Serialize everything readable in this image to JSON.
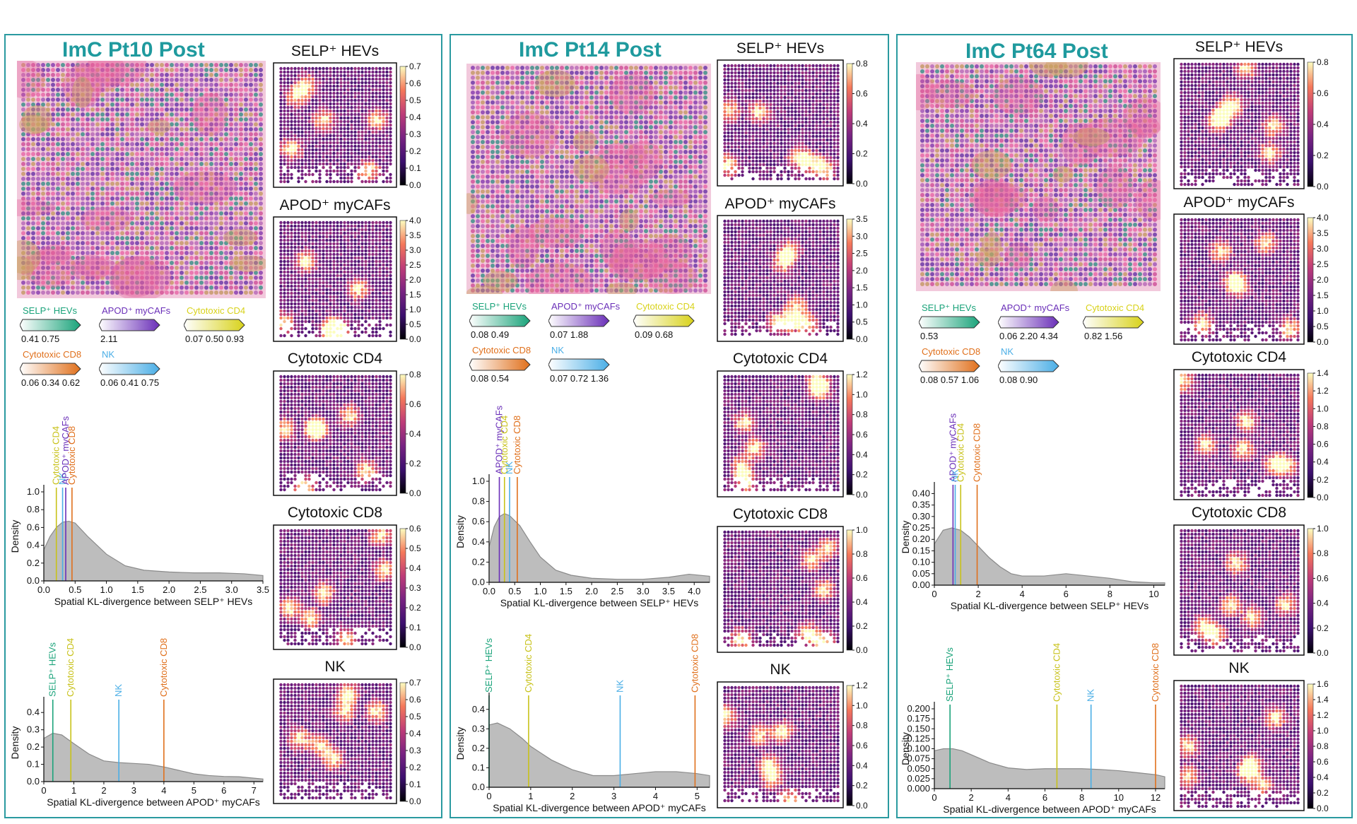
{
  "panels": [
    {
      "title": "ImC Pt10 Post",
      "legend": [
        {
          "name": "SELP⁺ HEVs",
          "color": "#1aa37a",
          "ticks": "0.41 0.75"
        },
        {
          "name": "APOD⁺ myCAFs",
          "color": "#6a2fb8",
          "ticks": "2.11"
        },
        {
          "name": "Cytotoxic CD4",
          "color": "#d8d21a",
          "ticks": "0.07 0.50 0.93"
        },
        {
          "name": "Cytotoxic CD8",
          "color": "#e0701c",
          "ticks": "0.06 0.34 0.62"
        },
        {
          "name": "NK",
          "color": "#4aaee6",
          "ticks": "0.06 0.41 0.75"
        }
      ],
      "maps": [
        {
          "title": "SELP⁺ HEVs",
          "ticks": [
            "0.0",
            "0.1",
            "0.2",
            "0.3",
            "0.4",
            "0.5",
            "0.6",
            "0.7"
          ]
        },
        {
          "title": "APOD⁺ myCAFs",
          "ticks": [
            "0.0",
            "0.5",
            "1.0",
            "1.5",
            "2.0",
            "2.5",
            "3.0",
            "3.5",
            "4.0"
          ]
        },
        {
          "title": "Cytotoxic CD4",
          "ticks": [
            "0.0",
            "0.2",
            "0.4",
            "0.6",
            "0.8"
          ]
        },
        {
          "title": "Cytotoxic CD8",
          "ticks": [
            "0.0",
            "0.1",
            "0.2",
            "0.3",
            "0.4",
            "0.5",
            "0.6"
          ]
        },
        {
          "title": "NK",
          "ticks": [
            "0.0",
            "0.1",
            "0.2",
            "0.3",
            "0.4",
            "0.5",
            "0.6",
            "0.7"
          ]
        }
      ]
    },
    {
      "title": "ImC Pt14 Post",
      "legend": [
        {
          "name": "SELP⁺ HEVs",
          "color": "#1aa37a",
          "ticks": "0.08 0.49"
        },
        {
          "name": "APOD⁺ myCAFs",
          "color": "#6a2fb8",
          "ticks": "0.07 1.88"
        },
        {
          "name": "Cytotoxic CD4",
          "color": "#d8d21a",
          "ticks": "0.09 0.68"
        },
        {
          "name": "Cytotoxic CD8",
          "color": "#e0701c",
          "ticks": "0.08 0.54"
        },
        {
          "name": "NK",
          "color": "#4aaee6",
          "ticks": "0.07 0.72 1.36"
        }
      ],
      "maps": [
        {
          "title": "SELP⁺ HEVs",
          "ticks": [
            "0.0",
            "0.2",
            "0.4",
            "0.6",
            "0.8"
          ]
        },
        {
          "title": "APOD⁺ myCAFs",
          "ticks": [
            "0.0",
            "0.5",
            "1.0",
            "1.5",
            "2.0",
            "2.5",
            "3.0",
            "3.5"
          ]
        },
        {
          "title": "Cytotoxic CD4",
          "ticks": [
            "0.0",
            "0.2",
            "0.4",
            "0.6",
            "0.8",
            "1.0",
            "1.2"
          ]
        },
        {
          "title": "Cytotoxic CD8",
          "ticks": [
            "0.0",
            "0.2",
            "0.4",
            "0.6",
            "0.8",
            "1.0"
          ]
        },
        {
          "title": "NK",
          "ticks": [
            "0.0",
            "0.2",
            "0.4",
            "0.6",
            "0.8",
            "1.0",
            "1.2"
          ]
        }
      ]
    },
    {
      "title": "ImC Pt64 Post",
      "legend": [
        {
          "name": "SELP⁺ HEVs",
          "color": "#1aa37a",
          "ticks": "0.53"
        },
        {
          "name": "APOD⁺ myCAFs",
          "color": "#6a2fb8",
          "ticks": "0.06 2.20 4.34"
        },
        {
          "name": "Cytotoxic CD4",
          "color": "#d8d21a",
          "ticks": "0.82 1.56"
        },
        {
          "name": "Cytotoxic CD8",
          "color": "#e0701c",
          "ticks": "0.08 0.57 1.06"
        },
        {
          "name": "NK",
          "color": "#4aaee6",
          "ticks": "0.08 0.90"
        }
      ],
      "maps": [
        {
          "title": "SELP⁺ HEVs",
          "ticks": [
            "0.0",
            "0.2",
            "0.4",
            "0.6",
            "0.8"
          ]
        },
        {
          "title": "APOD⁺ myCAFs",
          "ticks": [
            "0.0",
            "0.5",
            "1.0",
            "1.5",
            "2.0",
            "2.5",
            "3.0",
            "3.5",
            "4.0"
          ]
        },
        {
          "title": "Cytotoxic CD4",
          "ticks": [
            "0.0",
            "0.2",
            "0.4",
            "0.6",
            "0.8",
            "1.0",
            "1.2",
            "1.4"
          ]
        },
        {
          "title": "Cytotoxic CD8",
          "ticks": [
            "0.0",
            "0.2",
            "0.4",
            "0.6",
            "0.8",
            "1.0"
          ]
        },
        {
          "title": "NK",
          "ticks": [
            "0.0",
            "0.2",
            "0.4",
            "0.6",
            "0.8",
            "1.0",
            "1.2",
            "1.4",
            "1.6"
          ]
        }
      ]
    }
  ],
  "colors": {
    "frame": "#2a9aa0",
    "title": "#1f9a9e",
    "density_fill": "#bdbdbd",
    "SELP⁺ HEVs": "#1aa37a",
    "APOD⁺ myCAFs": "#6a2fb8",
    "Cytotoxic CD4": "#c8c21a",
    "Cytotoxic CD8": "#e0701c",
    "NK": "#4aaee6"
  },
  "chart_data": [
    {
      "type": "area",
      "panel": "ImC Pt10 Post",
      "xlabel": "Spatial KL-divergence between SELP⁺ HEVs",
      "ylabel": "Density",
      "xlim": [
        0,
        3.5
      ],
      "ylim": [
        0,
        1.0
      ],
      "xticks": [
        "0.0",
        "0.5",
        "1.0",
        "1.5",
        "2.0",
        "2.5",
        "3.0",
        "3.5"
      ],
      "yticks": [
        "0.0",
        "0.2",
        "0.4",
        "0.6",
        "0.8",
        "1.0"
      ],
      "x": [
        0,
        0.1,
        0.2,
        0.3,
        0.4,
        0.5,
        0.7,
        1.0,
        1.3,
        1.6,
        2.0,
        2.4,
        2.8,
        3.2,
        3.5
      ],
      "y": [
        0.35,
        0.5,
        0.6,
        0.66,
        0.67,
        0.65,
        0.5,
        0.3,
        0.17,
        0.12,
        0.1,
        0.09,
        0.09,
        0.08,
        0.06
      ],
      "markers": [
        {
          "label": "Cytotoxic CD4",
          "x": 0.2
        },
        {
          "label": "NK",
          "x": 0.3
        },
        {
          "label": "APOD⁺ myCAFs",
          "x": 0.35
        },
        {
          "label": "Cytotoxic CD8",
          "x": 0.45
        }
      ]
    },
    {
      "type": "area",
      "panel": "ImC Pt10 Post",
      "xlabel": "Spatial KL-divergence between APOD⁺ myCAFs",
      "ylabel": "Density",
      "xlim": [
        0,
        7.3
      ],
      "ylim": [
        0,
        0.45
      ],
      "xticks": [
        "0",
        "1",
        "2",
        "3",
        "4",
        "5",
        "6",
        "7"
      ],
      "yticks": [
        "0.0",
        "0.1",
        "0.2",
        "0.3",
        "0.4"
      ],
      "x": [
        0,
        0.3,
        0.6,
        1.0,
        1.5,
        2.0,
        2.5,
        3.0,
        3.5,
        4.0,
        4.5,
        5.0,
        5.5,
        6.0,
        6.5,
        7.0,
        7.3
      ],
      "y": [
        0.25,
        0.28,
        0.27,
        0.22,
        0.16,
        0.12,
        0.11,
        0.105,
        0.1,
        0.085,
        0.065,
        0.045,
        0.035,
        0.03,
        0.028,
        0.02,
        0.015
      ],
      "markers": [
        {
          "label": "SELP⁺ HEVs",
          "x": 0.3
        },
        {
          "label": "Cytotoxic CD4",
          "x": 0.9
        },
        {
          "label": "NK",
          "x": 2.5
        },
        {
          "label": "Cytotoxic CD8",
          "x": 4.0
        }
      ]
    },
    {
      "type": "area",
      "panel": "ImC Pt14 Post",
      "xlabel": "Spatial KL-divergence between SELP⁺ HEVs",
      "ylabel": "Density",
      "xlim": [
        0,
        4.3
      ],
      "ylim": [
        0,
        1.0
      ],
      "xticks": [
        "0.0",
        "0.5",
        "1.0",
        "1.5",
        "2.0",
        "2.5",
        "3.0",
        "3.5",
        "4.0"
      ],
      "yticks": [
        "0.0",
        "0.2",
        "0.4",
        "0.6",
        "0.8",
        "1.0"
      ],
      "x": [
        0,
        0.1,
        0.2,
        0.3,
        0.4,
        0.6,
        0.8,
        1.0,
        1.3,
        1.6,
        2.0,
        2.5,
        3.0,
        3.5,
        3.9,
        4.3
      ],
      "y": [
        0.35,
        0.55,
        0.65,
        0.68,
        0.66,
        0.56,
        0.4,
        0.25,
        0.12,
        0.07,
        0.04,
        0.03,
        0.03,
        0.05,
        0.08,
        0.06
      ],
      "markers": [
        {
          "label": "APOD⁺ myCAFs",
          "x": 0.2
        },
        {
          "label": "Cytotoxic CD4",
          "x": 0.3
        },
        {
          "label": "NK",
          "x": 0.4
        },
        {
          "label": "Cytotoxic CD8",
          "x": 0.55
        }
      ]
    },
    {
      "type": "area",
      "panel": "ImC Pt14 Post",
      "xlabel": "Spatial KL-divergence between APOD⁺ myCAFs",
      "ylabel": "Density",
      "xlim": [
        0,
        5.3
      ],
      "ylim": [
        0,
        0.45
      ],
      "xticks": [
        "0",
        "1",
        "2",
        "3",
        "4",
        "5"
      ],
      "yticks": [
        "0.0",
        "0.1",
        "0.2",
        "0.3",
        "0.4"
      ],
      "x": [
        0,
        0.2,
        0.5,
        0.8,
        1.0,
        1.5,
        2.0,
        2.5,
        3.0,
        3.5,
        4.0,
        4.5,
        5.0,
        5.3
      ],
      "y": [
        0.32,
        0.33,
        0.3,
        0.25,
        0.21,
        0.14,
        0.09,
        0.06,
        0.06,
        0.07,
        0.08,
        0.08,
        0.07,
        0.06
      ],
      "markers": [
        {
          "label": "SELP⁺ HEVs",
          "x": 0.0
        },
        {
          "label": "Cytotoxic CD4",
          "x": 0.95
        },
        {
          "label": "NK",
          "x": 3.15
        },
        {
          "label": "Cytotoxic CD8",
          "x": 4.95
        }
      ]
    },
    {
      "type": "area",
      "panel": "ImC Pt64 Post",
      "xlabel": "Spatial KL-divergence between SELP⁺ HEVs",
      "ylabel": "Density",
      "xlim": [
        0,
        10.5
      ],
      "ylim": [
        0,
        0.42
      ],
      "xticks": [
        "0",
        "2",
        "4",
        "6",
        "8",
        "10"
      ],
      "yticks": [
        "0.00",
        "0.05",
        "0.10",
        "0.15",
        "0.20",
        "0.25",
        "0.30",
        "0.35",
        "0.40"
      ],
      "x": [
        0,
        0.4,
        0.8,
        1.2,
        1.6,
        2.0,
        2.5,
        3.0,
        3.5,
        4.0,
        5.0,
        6.0,
        7.0,
        8.0,
        9.0,
        10.0,
        10.5
      ],
      "y": [
        0.18,
        0.24,
        0.25,
        0.24,
        0.21,
        0.17,
        0.12,
        0.08,
        0.05,
        0.04,
        0.04,
        0.05,
        0.04,
        0.03,
        0.015,
        0.01,
        0.01
      ],
      "markers": [
        {
          "label": "APOD⁺ myCAFs",
          "x": 0.85
        },
        {
          "label": "NK",
          "x": 0.95
        },
        {
          "label": "Cytotoxic CD4",
          "x": 1.2
        },
        {
          "label": "Cytotoxic CD8",
          "x": 1.95
        }
      ]
    },
    {
      "type": "area",
      "panel": "ImC Pt64 Post",
      "xlabel": "Spatial KL-divergence between APOD⁺ myCAFs",
      "ylabel": "Density",
      "xlim": [
        0,
        12.5
      ],
      "ylim": [
        0,
        0.2
      ],
      "xticks": [
        "0",
        "2",
        "4",
        "6",
        "8",
        "10",
        "12"
      ],
      "yticks": [
        "0.000",
        "0.025",
        "0.050",
        "0.075",
        "0.100",
        "0.125",
        "0.150",
        "0.175",
        "0.200"
      ],
      "x": [
        0,
        0.5,
        1.0,
        1.5,
        2.0,
        3.0,
        4.0,
        5.0,
        6.0,
        7.0,
        8.0,
        9.0,
        10.0,
        11.0,
        12.0,
        12.5
      ],
      "y": [
        0.095,
        0.1,
        0.1,
        0.095,
        0.085,
        0.065,
        0.052,
        0.048,
        0.05,
        0.05,
        0.05,
        0.048,
        0.045,
        0.04,
        0.035,
        0.03
      ],
      "markers": [
        {
          "label": "SELP⁺ HEVs",
          "x": 0.85
        },
        {
          "label": "Cytotoxic CD4",
          "x": 6.65
        },
        {
          "label": "NK",
          "x": 8.5
        },
        {
          "label": "Cytotoxic CD8",
          "x": 12.0
        }
      ]
    }
  ]
}
